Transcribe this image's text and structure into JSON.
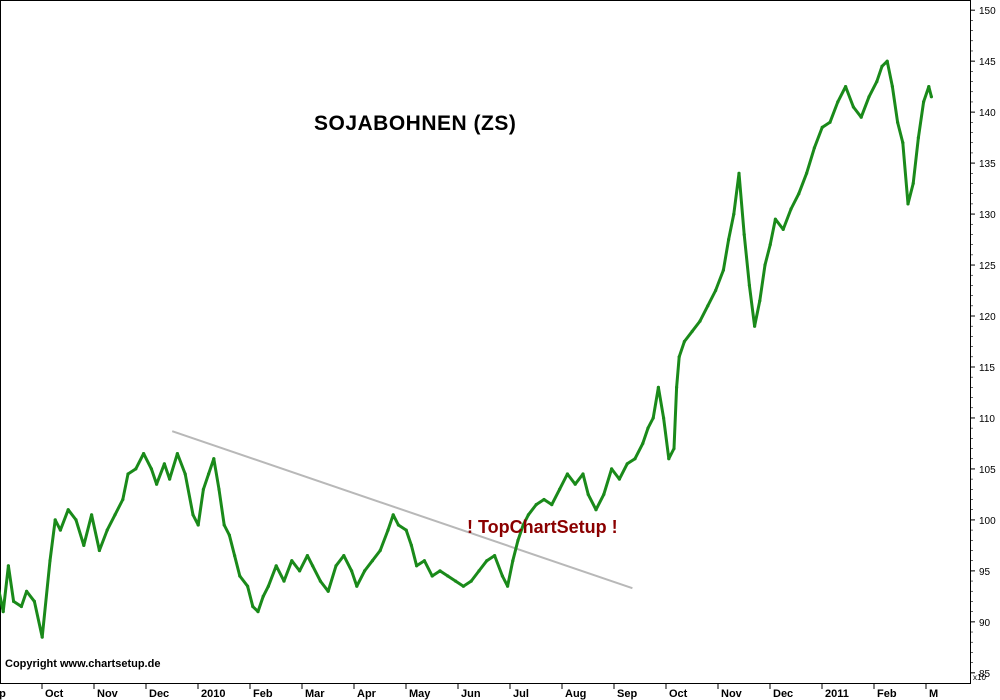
{
  "chart_data": {
    "type": "line",
    "title": "SOJABOHNEN (ZS)",
    "watermark": "! TopChartSetup !",
    "copyright": "Copyright www.chartsetup.de",
    "scale_note": "x10",
    "xlabel": "",
    "ylabel": "",
    "ylim": [
      84,
      151
    ],
    "y_ticks": [
      85,
      90,
      95,
      100,
      105,
      110,
      115,
      120,
      125,
      130,
      135,
      140,
      145,
      150
    ],
    "x_tick_labels": [
      "ep",
      "Oct",
      "Nov",
      "Dec",
      "2010",
      "Feb",
      "Mar",
      "Apr",
      "May",
      "Jun",
      "Jul",
      "Aug",
      "Sep",
      "Oct",
      "Nov",
      "Dec",
      "2011",
      "Feb",
      "M"
    ],
    "x_range_months": [
      0,
      18
    ],
    "grid": false,
    "series": [
      {
        "name": "",
        "color": "#1a8a1a",
        "points": [
          [
            0.0,
            93.5
          ],
          [
            0.1,
            91.0
          ],
          [
            0.2,
            95.5
          ],
          [
            0.3,
            92.0
          ],
          [
            0.45,
            91.5
          ],
          [
            0.55,
            93.0
          ],
          [
            0.7,
            92.0
          ],
          [
            0.85,
            88.5
          ],
          [
            1.0,
            96.0
          ],
          [
            1.1,
            100.0
          ],
          [
            1.2,
            99.0
          ],
          [
            1.35,
            101.0
          ],
          [
            1.5,
            100.0
          ],
          [
            1.65,
            97.5
          ],
          [
            1.8,
            100.5
          ],
          [
            1.95,
            97.0
          ],
          [
            2.1,
            99.0
          ],
          [
            2.25,
            100.5
          ],
          [
            2.4,
            102.0
          ],
          [
            2.5,
            104.5
          ],
          [
            2.65,
            105.0
          ],
          [
            2.8,
            106.5
          ],
          [
            2.95,
            105.0
          ],
          [
            3.05,
            103.5
          ],
          [
            3.2,
            105.5
          ],
          [
            3.3,
            104.0
          ],
          [
            3.45,
            106.5
          ],
          [
            3.6,
            104.5
          ],
          [
            3.75,
            100.5
          ],
          [
            3.85,
            99.5
          ],
          [
            3.95,
            103.0
          ],
          [
            4.05,
            104.5
          ],
          [
            4.15,
            106.0
          ],
          [
            4.25,
            103.0
          ],
          [
            4.35,
            99.5
          ],
          [
            4.45,
            98.5
          ],
          [
            4.55,
            96.5
          ],
          [
            4.65,
            94.5
          ],
          [
            4.8,
            93.5
          ],
          [
            4.9,
            91.5
          ],
          [
            5.0,
            91.0
          ],
          [
            5.1,
            92.5
          ],
          [
            5.2,
            93.5
          ],
          [
            5.35,
            95.5
          ],
          [
            5.5,
            94.0
          ],
          [
            5.65,
            96.0
          ],
          [
            5.8,
            95.0
          ],
          [
            5.95,
            96.5
          ],
          [
            6.05,
            95.5
          ],
          [
            6.2,
            94.0
          ],
          [
            6.35,
            93.0
          ],
          [
            6.5,
            95.5
          ],
          [
            6.65,
            96.5
          ],
          [
            6.8,
            95.0
          ],
          [
            6.9,
            93.5
          ],
          [
            7.05,
            95.0
          ],
          [
            7.2,
            96.0
          ],
          [
            7.35,
            97.0
          ],
          [
            7.5,
            99.0
          ],
          [
            7.6,
            100.5
          ],
          [
            7.7,
            99.5
          ],
          [
            7.85,
            99.0
          ],
          [
            7.95,
            97.5
          ],
          [
            8.05,
            95.5
          ],
          [
            8.2,
            96.0
          ],
          [
            8.35,
            94.5
          ],
          [
            8.5,
            95.0
          ],
          [
            8.65,
            94.5
          ],
          [
            8.8,
            94.0
          ],
          [
            8.95,
            93.5
          ],
          [
            9.1,
            94.0
          ],
          [
            9.25,
            95.0
          ],
          [
            9.4,
            96.0
          ],
          [
            9.55,
            96.5
          ],
          [
            9.7,
            94.5
          ],
          [
            9.8,
            93.5
          ],
          [
            9.9,
            96.0
          ],
          [
            10.0,
            98.0
          ],
          [
            10.1,
            99.5
          ],
          [
            10.2,
            100.5
          ],
          [
            10.35,
            101.5
          ],
          [
            10.5,
            102.0
          ],
          [
            10.65,
            101.5
          ],
          [
            10.8,
            103.0
          ],
          [
            10.95,
            104.5
          ],
          [
            11.1,
            103.5
          ],
          [
            11.25,
            104.5
          ],
          [
            11.35,
            102.5
          ],
          [
            11.5,
            101.0
          ],
          [
            11.65,
            102.5
          ],
          [
            11.8,
            105.0
          ],
          [
            11.95,
            104.0
          ],
          [
            12.1,
            105.5
          ],
          [
            12.25,
            106.0
          ],
          [
            12.4,
            107.5
          ],
          [
            12.5,
            109.0
          ],
          [
            12.6,
            110.0
          ],
          [
            12.7,
            113.0
          ],
          [
            12.8,
            110.0
          ],
          [
            12.9,
            106.0
          ],
          [
            13.0,
            107.0
          ],
          [
            13.05,
            113.0
          ],
          [
            13.1,
            116.0
          ],
          [
            13.2,
            117.5
          ],
          [
            13.35,
            118.5
          ],
          [
            13.5,
            119.5
          ],
          [
            13.65,
            121.0
          ],
          [
            13.8,
            122.5
          ],
          [
            13.95,
            124.5
          ],
          [
            14.05,
            127.5
          ],
          [
            14.15,
            130.0
          ],
          [
            14.25,
            134.0
          ],
          [
            14.35,
            128.0
          ],
          [
            14.45,
            123.0
          ],
          [
            14.55,
            119.0
          ],
          [
            14.65,
            121.5
          ],
          [
            14.75,
            125.0
          ],
          [
            14.85,
            127.0
          ],
          [
            14.95,
            129.5
          ],
          [
            15.1,
            128.5
          ],
          [
            15.25,
            130.5
          ],
          [
            15.4,
            132.0
          ],
          [
            15.55,
            134.0
          ],
          [
            15.7,
            136.5
          ],
          [
            15.85,
            138.5
          ],
          [
            16.0,
            139.0
          ],
          [
            16.15,
            141.0
          ],
          [
            16.3,
            142.5
          ],
          [
            16.45,
            140.5
          ],
          [
            16.6,
            139.5
          ],
          [
            16.75,
            141.5
          ],
          [
            16.9,
            143.0
          ],
          [
            17.0,
            144.5
          ],
          [
            17.1,
            145.0
          ],
          [
            17.2,
            142.5
          ],
          [
            17.3,
            139.0
          ],
          [
            17.4,
            137.0
          ],
          [
            17.5,
            131.0
          ],
          [
            17.6,
            133.0
          ],
          [
            17.7,
            137.5
          ],
          [
            17.8,
            141.0
          ],
          [
            17.9,
            142.5
          ],
          [
            17.95,
            141.5
          ]
        ]
      }
    ],
    "annotations": [
      {
        "type": "trendline",
        "color": "#b8b8b8",
        "from": [
          3.35,
          108.7
        ],
        "to": [
          12.2,
          93.3
        ]
      }
    ]
  }
}
